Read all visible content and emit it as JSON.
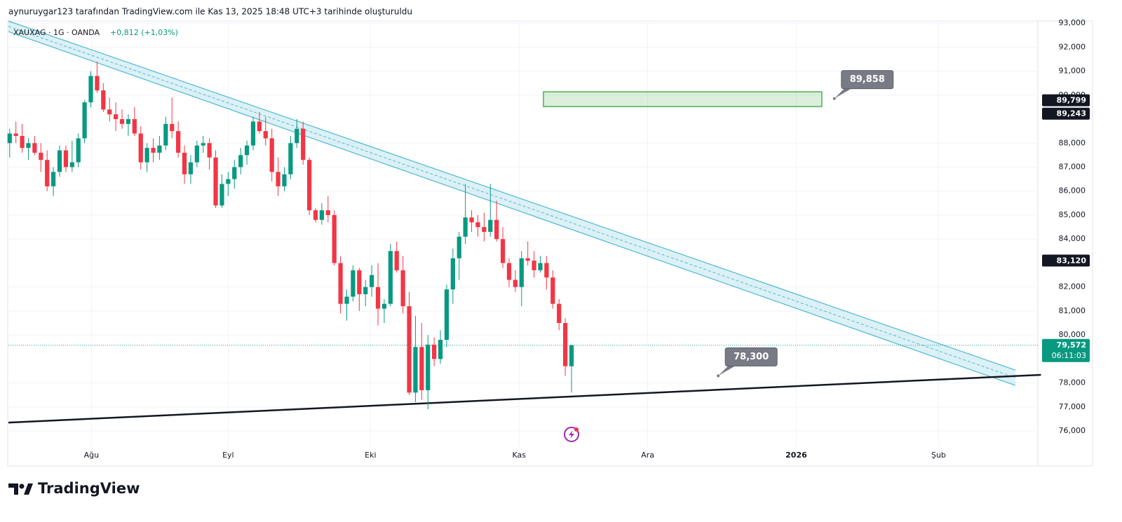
{
  "header": {
    "text": "aynuruygar123 tarafından TradingView.com ile Kas 13, 2025 18:48 UTC+3 tarihinde oluşturuldu"
  },
  "chart_data": {
    "type": "candlestick",
    "symbol": "XAUXAG · 1G · OANDA",
    "change": "+0,812 (+1,03%)",
    "open": [
      88000,
      88400,
      88300,
      87800,
      88000,
      87600,
      87300,
      86200,
      86800,
      87700,
      87000,
      87200,
      88200,
      89700,
      90800,
      90200,
      89400,
      89200,
      89000,
      88800,
      89000,
      88400,
      87200,
      87800,
      87600,
      87900,
      88800,
      88500,
      87600,
      86700,
      87200,
      87900,
      88000,
      87400,
      85400,
      86300,
      86500,
      87000,
      87500,
      87900,
      88900,
      88500,
      88200,
      86800,
      86200,
      86700,
      88000,
      88600,
      87300,
      85200,
      84800,
      85200,
      85000,
      83000,
      81300,
      81600,
      82700,
      81700,
      82000,
      82000,
      81100,
      81300,
      83500,
      82700,
      81200,
      77600,
      79500,
      77700,
      79600,
      79000,
      79800,
      81900,
      83200,
      84100,
      84900,
      84700,
      84500,
      84300,
      84800,
      84000,
      83000,
      82300,
      82000,
      83200,
      83100,
      82700,
      83000,
      82400,
      81300,
      80500,
      78700
    ],
    "high": [
      88600,
      88900,
      88800,
      88200,
      88300,
      88000,
      87700,
      87000,
      87900,
      87900,
      88100,
      88400,
      89800,
      91000,
      91400,
      90500,
      89900,
      89700,
      89400,
      89200,
      89500,
      88700,
      88000,
      88200,
      88300,
      89100,
      89900,
      88900,
      87900,
      87500,
      88100,
      88300,
      88200,
      87700,
      86700,
      86800,
      87300,
      87800,
      88100,
      89100,
      89300,
      89100,
      88600,
      87400,
      87000,
      88300,
      89000,
      88900,
      87400,
      85300,
      85500,
      85800,
      85200,
      83300,
      81900,
      82900,
      82800,
      82300,
      82900,
      83000,
      81500,
      83800,
      83900,
      83300,
      81800,
      80800,
      80500,
      80000,
      79900,
      80200,
      82100,
      83600,
      84300,
      86300,
      85200,
      85000,
      85100,
      86300,
      85600,
      84500,
      83200,
      82700,
      83500,
      83900,
      83500,
      83300,
      83300,
      82700,
      81500,
      80700,
      79600
    ],
    "low": [
      87400,
      88000,
      87600,
      87300,
      87500,
      86800,
      86000,
      85800,
      86600,
      86800,
      86800,
      87000,
      88000,
      89500,
      90100,
      89300,
      88900,
      88500,
      88600,
      88300,
      88300,
      86900,
      86800,
      87200,
      87300,
      87700,
      88200,
      87400,
      86300,
      86300,
      87000,
      87600,
      86900,
      85300,
      85300,
      85800,
      86100,
      86700,
      87100,
      87700,
      88400,
      87900,
      86400,
      85800,
      86000,
      86500,
      87800,
      87100,
      85000,
      84700,
      84600,
      84700,
      82900,
      80900,
      80600,
      81400,
      81000,
      81200,
      81600,
      80400,
      80500,
      81200,
      82600,
      80900,
      77500,
      77200,
      77300,
      76900,
      78700,
      78800,
      79500,
      81300,
      82300,
      83800,
      84300,
      84100,
      83900,
      84100,
      83900,
      82800,
      82000,
      81800,
      81200,
      82900,
      82400,
      82600,
      81900,
      81100,
      80200,
      78300,
      77600
    ],
    "close": [
      88400,
      88300,
      87800,
      88000,
      87600,
      87300,
      86200,
      86800,
      87700,
      87000,
      87200,
      88200,
      89700,
      90800,
      90200,
      89400,
      89200,
      89000,
      88800,
      89000,
      88400,
      87200,
      87800,
      87600,
      87900,
      88800,
      88500,
      87600,
      86700,
      87200,
      87900,
      88000,
      87400,
      85400,
      86300,
      86500,
      87000,
      87500,
      87900,
      88900,
      88500,
      88200,
      86800,
      86200,
      86700,
      88000,
      88600,
      87300,
      85200,
      84800,
      85200,
      85000,
      83000,
      81300,
      81600,
      82700,
      81700,
      82000,
      82500,
      81100,
      81300,
      83500,
      82700,
      81200,
      77600,
      79500,
      77700,
      79600,
      79000,
      79800,
      81900,
      83200,
      84100,
      84900,
      84700,
      84500,
      84300,
      84800,
      84000,
      83000,
      82300,
      82000,
      83200,
      83100,
      82700,
      83000,
      82400,
      81300,
      80500,
      78700,
      79572
    ],
    "up_color": "#089981",
    "down_color": "#f23645",
    "xlim": [
      -0.2,
      164.7
    ],
    "xticks": [
      {
        "value": 13.1,
        "label": "Ağu"
      },
      {
        "value": 35.0,
        "label": "Eyl"
      },
      {
        "value": 57.8,
        "label": "Eki"
      },
      {
        "value": 81.6,
        "label": "Kas"
      },
      {
        "value": 102.2,
        "label": "Ara"
      },
      {
        "value": 126,
        "label": "2026"
      },
      {
        "value": 148.8,
        "label": "Şub"
      }
    ],
    "ylim": [
      75360,
      93090
    ],
    "yticks": [
      {
        "value": 76000,
        "label": "76,000"
      },
      {
        "value": 77000,
        "label": "77,000"
      },
      {
        "value": 78000,
        "label": "78,000"
      },
      {
        "value": 80000,
        "label": "80,000"
      },
      {
        "value": 81000,
        "label": "81,000"
      },
      {
        "value": 82000,
        "label": "82,000"
      },
      {
        "value": 84000,
        "label": "84,000"
      },
      {
        "value": 85000,
        "label": "85,000"
      },
      {
        "value": 86000,
        "label": "86,000"
      },
      {
        "value": 87000,
        "label": "87,000"
      },
      {
        "value": 88000,
        "label": "88,000"
      },
      {
        "value": 90000,
        "label": "90,000"
      },
      {
        "value": 91000,
        "label": "91,000"
      },
      {
        "value": 92000,
        "label": "92,000"
      },
      {
        "value": 93000,
        "label": "93,000"
      }
    ],
    "grid": true,
    "last_price": {
      "value": 79572,
      "label": "79,572"
    },
    "countdown": "06:11:03",
    "price_badges": [
      {
        "value": 89799,
        "label": "89,799"
      },
      {
        "value": 89243,
        "label": "89,243"
      },
      {
        "value": 83120,
        "label": "83,120"
      }
    ],
    "channel": {
      "color": "#4fb8d4",
      "upper": {
        "x": [
          -0.2,
          161.1
        ],
        "y": [
          93090,
          78540
        ]
      },
      "lower": {
        "x": [
          -0.2,
          161.1
        ],
        "y": [
          92650,
          77900
        ]
      }
    },
    "support_line": {
      "color": "#131722",
      "x": [
        -0.2,
        165.2
      ],
      "y": [
        76350,
        78340
      ]
    },
    "zone": {
      "color": "#4caf50",
      "x": [
        85.5,
        130.1
      ],
      "y": [
        89524,
        90138
      ]
    },
    "callouts": [
      {
        "x": 132.1,
        "value": 89858,
        "label": "89,858"
      },
      {
        "x": 113.5,
        "value": 78300,
        "label": "78,300"
      }
    ]
  },
  "footer": {
    "logo": "TradingView"
  }
}
